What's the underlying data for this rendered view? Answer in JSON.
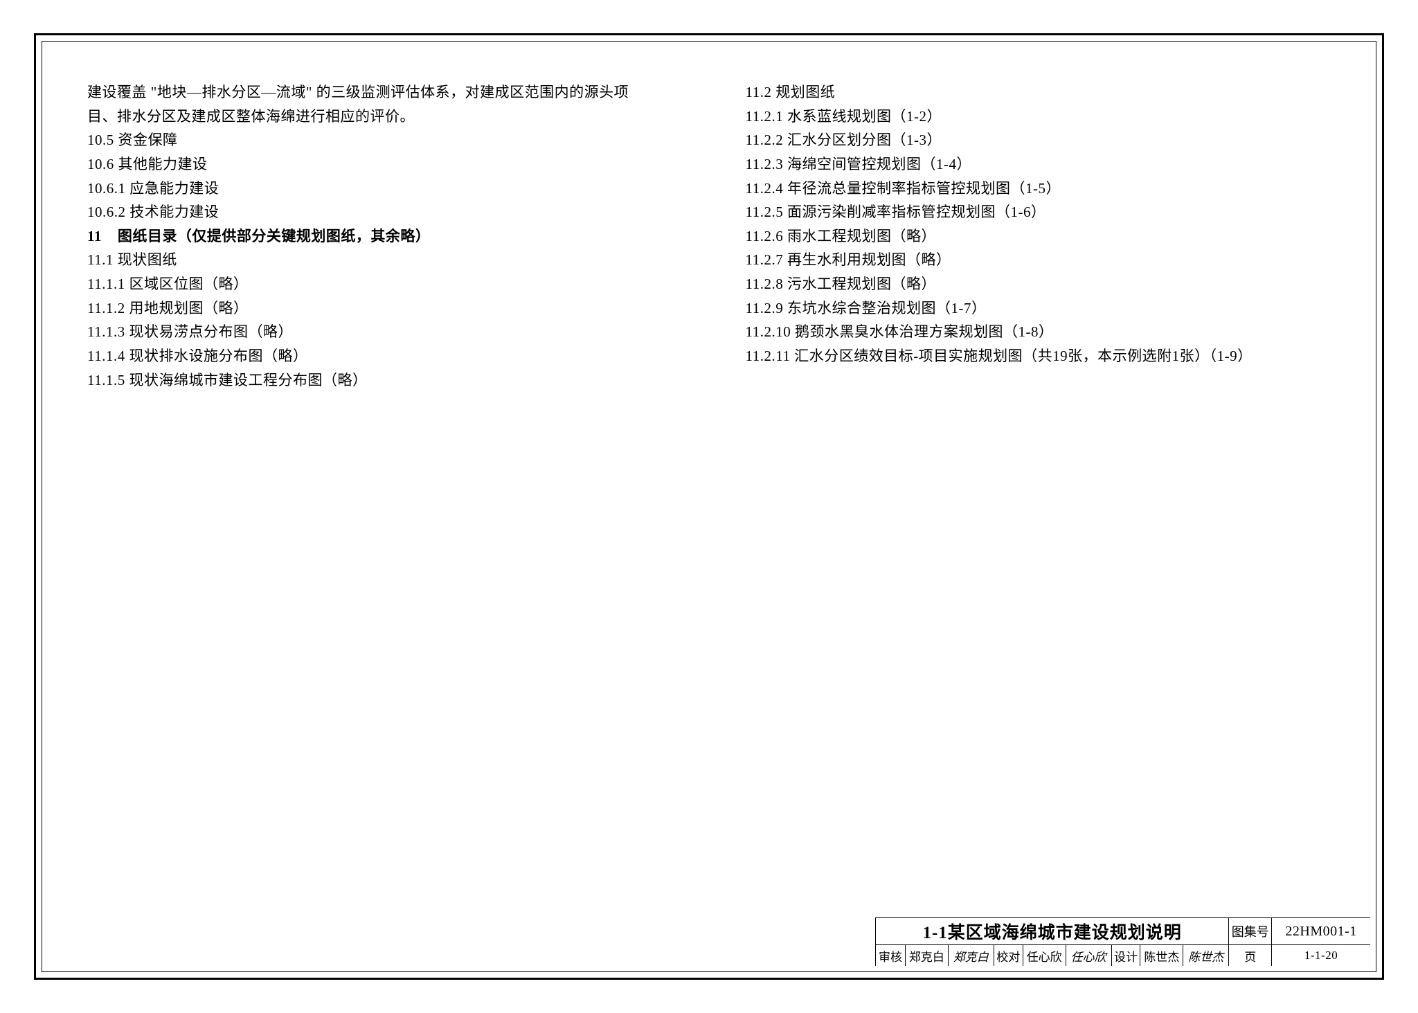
{
  "left_column": [
    {
      "text": "建设覆盖 \"地块—排水分区—流域\" 的三级监测评估体系，对建成区范围内的源头项",
      "bold": false
    },
    {
      "text": "目、排水分区及建成区整体海绵进行相应的评价。",
      "bold": false
    },
    {
      "text": "10.5 资金保障",
      "bold": false
    },
    {
      "text": "10.6 其他能力建设",
      "bold": false
    },
    {
      "text": "10.6.1 应急能力建设",
      "bold": false
    },
    {
      "text": "10.6.2 技术能力建设",
      "bold": false
    },
    {
      "text": "11    图纸目录（仅提供部分关键规划图纸，其余略）",
      "bold": true
    },
    {
      "text": "11.1 现状图纸",
      "bold": false
    },
    {
      "text": "11.1.1 区域区位图（略）",
      "bold": false
    },
    {
      "text": "11.1.2 用地规划图（略）",
      "bold": false
    },
    {
      "text": "11.1.3 现状易涝点分布图（略）",
      "bold": false
    },
    {
      "text": "11.1.4 现状排水设施分布图（略）",
      "bold": false
    },
    {
      "text": "11.1.5 现状海绵城市建设工程分布图（略）",
      "bold": false
    }
  ],
  "right_column": [
    {
      "text": "11.2 规划图纸",
      "bold": false
    },
    {
      "text": "11.2.1 水系蓝线规划图（1-2）",
      "bold": false
    },
    {
      "text": "11.2.2 汇水分区划分图（1-3）",
      "bold": false
    },
    {
      "text": "11.2.3 海绵空间管控规划图（1-4）",
      "bold": false
    },
    {
      "text": "11.2.4 年径流总量控制率指标管控规划图（1-5）",
      "bold": false
    },
    {
      "text": "11.2.5 面源污染削减率指标管控规划图（1-6）",
      "bold": false
    },
    {
      "text": "11.2.6 雨水工程规划图（略）",
      "bold": false
    },
    {
      "text": "11.2.7 再生水利用规划图（略）",
      "bold": false
    },
    {
      "text": "11.2.8 污水工程规划图（略）",
      "bold": false
    },
    {
      "text": "11.2.9 东坑水综合整治规划图（1-7）",
      "bold": false
    },
    {
      "text": "11.2.10 鹅颈水黑臭水体治理方案规划图（1-8）",
      "bold": false
    },
    {
      "text": "11.2.11 汇水分区绩效目标-项目实施规划图（共19张，本示例选附1张）（1-9）",
      "bold": false
    }
  ],
  "titleblock": {
    "title": "1-1某区域海绵城市建设规划说明",
    "tuji_label": "图集号",
    "tuji_value": "22HM001-1",
    "shenhe_label": "审核",
    "shenhe_name": "郑克白",
    "shenhe_sig": "郑克白",
    "jiaodui_label": "校对",
    "jiaodui_name": "任心欣",
    "jiaodui_sig": "任心欣",
    "sheji_label": "设计",
    "sheji_name": "陈世杰",
    "sheji_sig": "陈世杰",
    "page_label": "页",
    "page_value": "1-1-20"
  }
}
